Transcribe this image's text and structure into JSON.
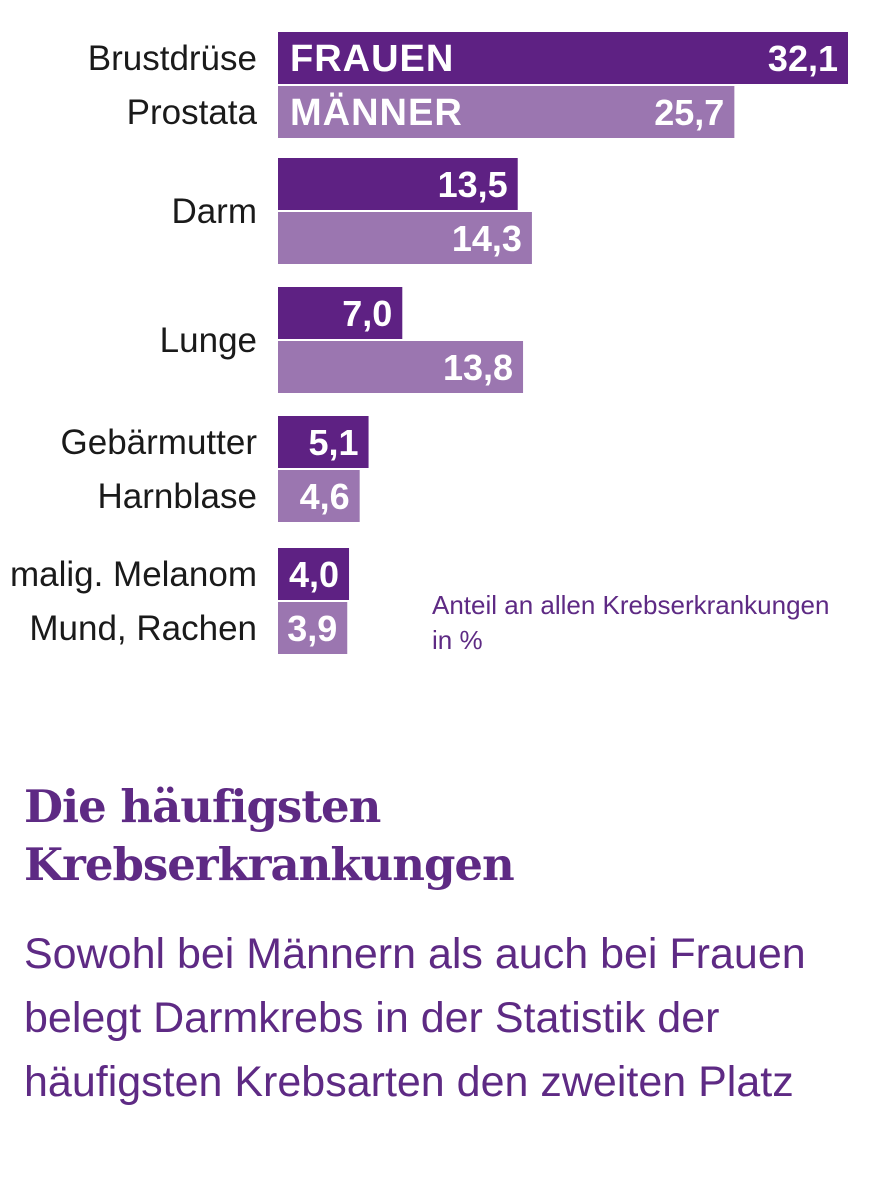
{
  "chart_data": {
    "type": "bar",
    "orientation": "horizontal",
    "unit_note": "Anteil an allen Krebserkrankungen in %",
    "series": [
      {
        "name": "FRAUEN",
        "color": "#5e2183"
      },
      {
        "name": "MÄNNER",
        "color": "#9b76b0"
      }
    ],
    "groups": [
      {
        "bars": [
          {
            "label": "Brustdrüse",
            "series": "FRAUEN",
            "value": 32.1,
            "display": "32,1"
          },
          {
            "label": "Prostata",
            "series": "MÄNNER",
            "value": 25.7,
            "display": "25,7"
          }
        ]
      },
      {
        "label": "Darm",
        "bars": [
          {
            "series": "FRAUEN",
            "value": 13.5,
            "display": "13,5"
          },
          {
            "series": "MÄNNER",
            "value": 14.3,
            "display": "14,3"
          }
        ]
      },
      {
        "label": "Lunge",
        "bars": [
          {
            "series": "FRAUEN",
            "value": 7.0,
            "display": "7,0"
          },
          {
            "series": "MÄNNER",
            "value": 13.8,
            "display": "13,8"
          }
        ]
      },
      {
        "bars": [
          {
            "label": "Gebärmutter",
            "series": "FRAUEN",
            "value": 5.1,
            "display": "5,1"
          },
          {
            "label": "Harnblase",
            "series": "MÄNNER",
            "value": 4.6,
            "display": "4,6"
          }
        ]
      },
      {
        "bars": [
          {
            "label": "malig. Melanom",
            "series": "FRAUEN",
            "value": 4.0,
            "display": "4,0"
          },
          {
            "label": "Mund, Rachen",
            "series": "MÄNNER",
            "value": 3.9,
            "display": "3,9"
          }
        ]
      }
    ],
    "xlim": [
      0,
      32.1
    ]
  },
  "article": {
    "headline": "Die häufigsten Krebserkrankungen",
    "body": "Sowohl bei Männern als auch bei Frauen belegt Darmkrebs in der Statistik der häufigsten Krebsarten den zweiten Platz"
  }
}
